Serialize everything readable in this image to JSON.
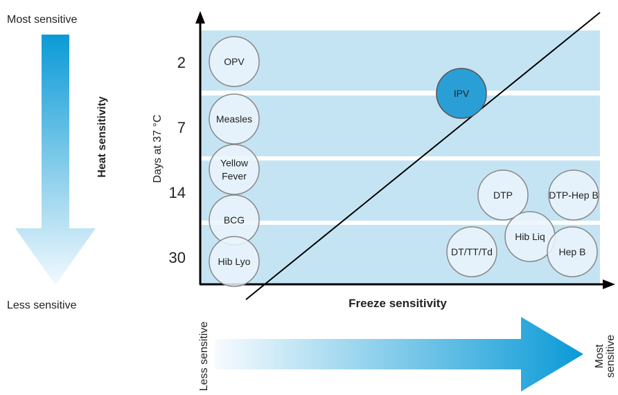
{
  "heat_axis": {
    "top_label": "Most sensitive",
    "bottom_label": "Less sensitive",
    "title": "Heat sensitivity"
  },
  "freeze_axis": {
    "title": "Freeze sensitivity",
    "left_label": "Less sensitive",
    "right_label_line1": "Most",
    "right_label_line2": "sensitive"
  },
  "y_axis": {
    "label": "Days at 37 °C",
    "ticks": [
      "2",
      "7",
      "14",
      "30"
    ]
  },
  "vaccines": [
    {
      "name": "OPV",
      "lines": [
        "OPV"
      ],
      "highlight": false
    },
    {
      "name": "Measles",
      "lines": [
        "Measles"
      ],
      "highlight": false
    },
    {
      "name": "Yellow Fever",
      "lines": [
        "Yellow",
        "Fever"
      ],
      "highlight": false
    },
    {
      "name": "BCG",
      "lines": [
        "BCG"
      ],
      "highlight": false
    },
    {
      "name": "Hib Lyo",
      "lines": [
        "Hib Lyo"
      ],
      "highlight": false
    },
    {
      "name": "IPV",
      "lines": [
        "IPV"
      ],
      "highlight": true
    },
    {
      "name": "DTP",
      "lines": [
        "DTP"
      ],
      "highlight": false
    },
    {
      "name": "DTP-Hep B",
      "lines": [
        "DTP-Hep B"
      ],
      "highlight": false
    },
    {
      "name": "Hib Liq",
      "lines": [
        "Hib Liq"
      ],
      "highlight": false
    },
    {
      "name": "DT/TT/Td",
      "lines": [
        "DT/TT/Td"
      ],
      "highlight": false
    },
    {
      "name": "Hep B",
      "lines": [
        "Hep B"
      ],
      "highlight": false
    }
  ],
  "colors": {
    "band": "#c5e4f3",
    "arrow_dark": "#0a9ad6",
    "bubble_fill": "#eaf5fb",
    "bubble_stroke": "#888888",
    "highlight_fill": "#2a9fd6",
    "axis": "#000000"
  }
}
